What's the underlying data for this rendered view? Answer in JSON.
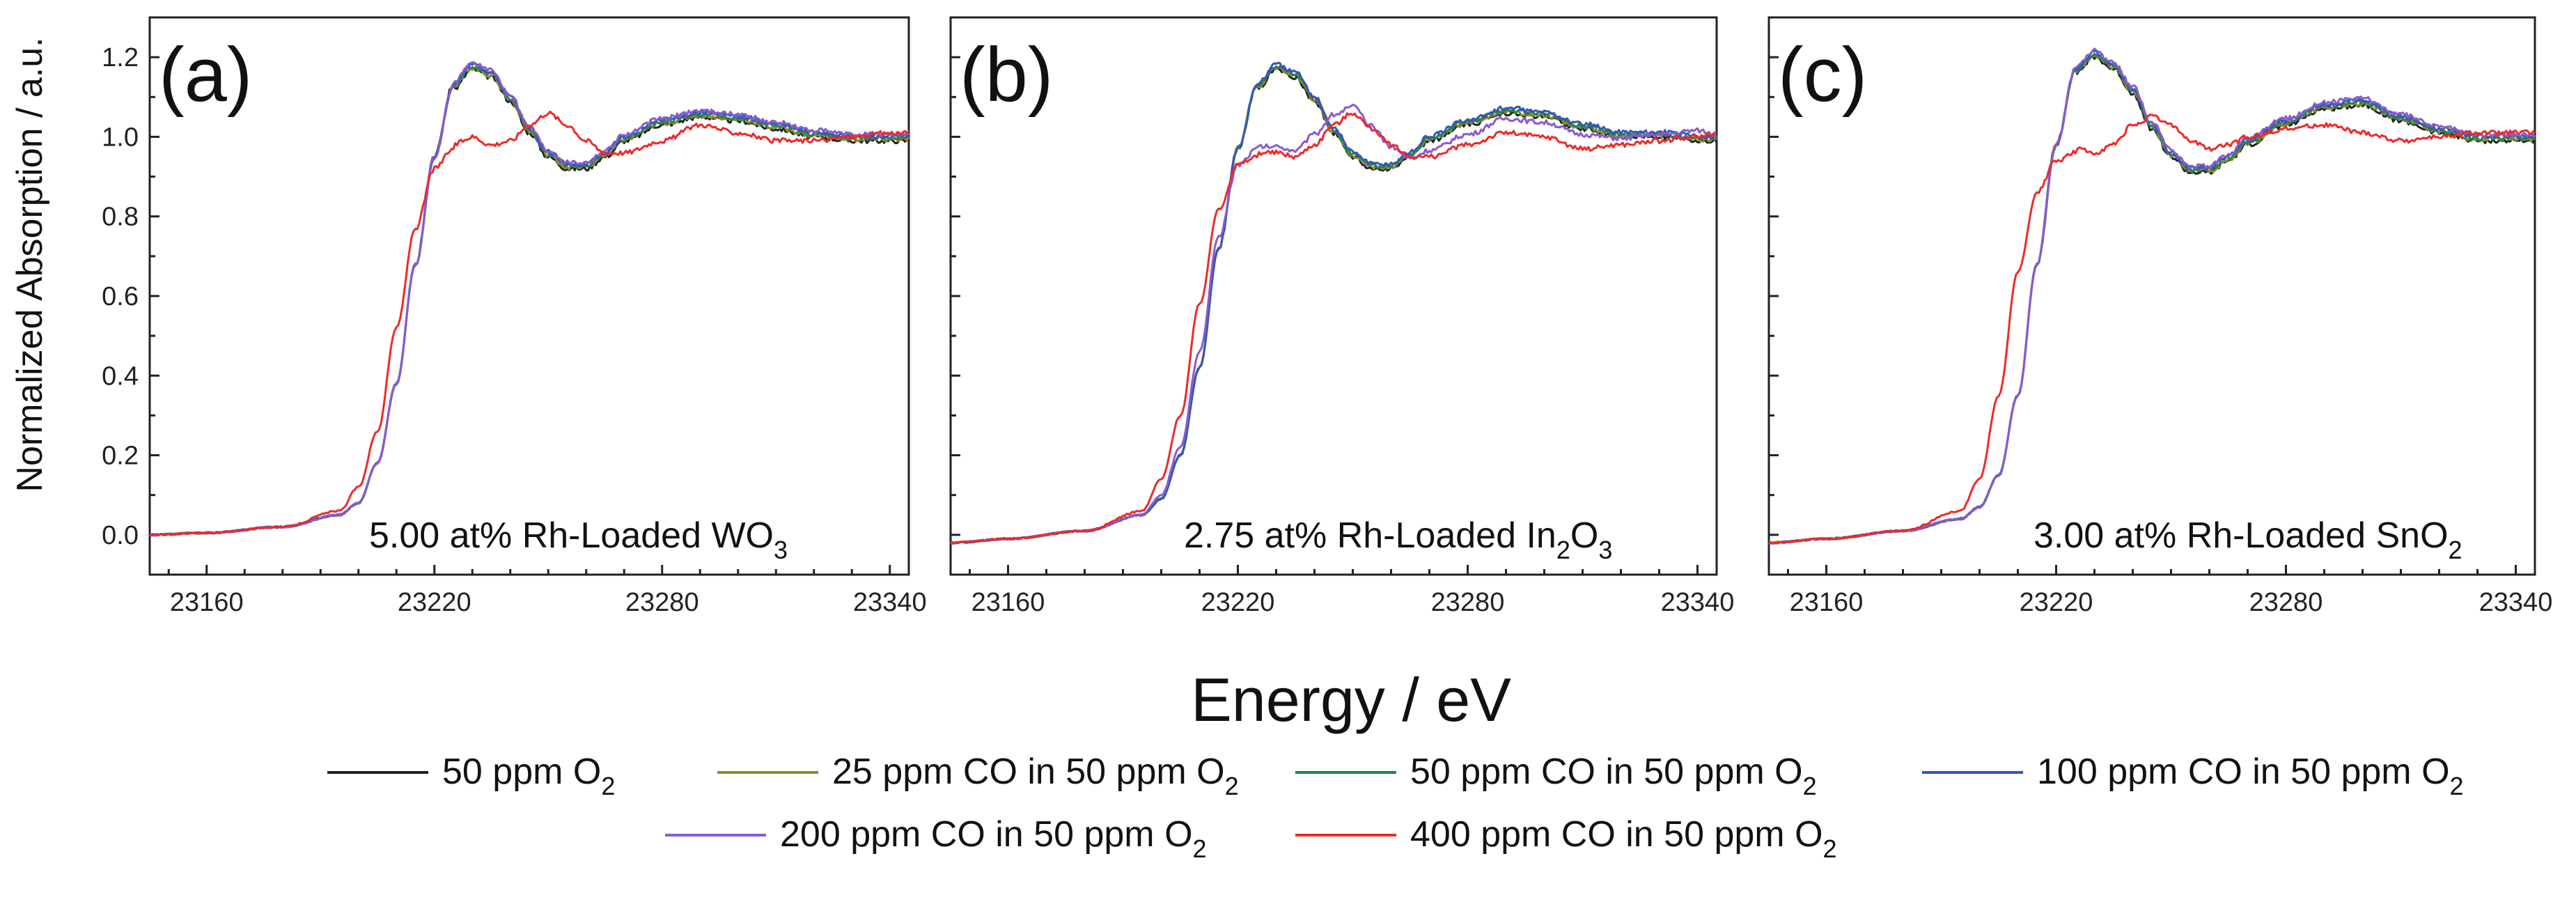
{
  "chart_data": {
    "type": "line",
    "ylabel": "Normalized Absorption / a.u.",
    "xlabel": "Energy / eV",
    "x_range": [
      23145,
      23345
    ],
    "legend": [
      {
        "id": "s1",
        "label": "50 ppm O",
        "sub": "2",
        "color": "#222222"
      },
      {
        "id": "s2",
        "label": "25 ppm CO in 50 ppm O",
        "sub": "2",
        "color": "#8a8a2a"
      },
      {
        "id": "s3",
        "label": "50 ppm CO in 50 ppm O",
        "sub": "2",
        "color": "#1e8a4a"
      },
      {
        "id": "s4",
        "label": "100 ppm CO in 50 ppm O",
        "sub": "2",
        "color": "#3a55b8"
      },
      {
        "id": "s5",
        "label": "200 ppm CO in 50 ppm O",
        "sub": "2",
        "color": "#8a5ad0"
      },
      {
        "id": "s6",
        "label": "400 ppm CO in 50 ppm O",
        "sub": "2",
        "color": "#ee2a2a"
      }
    ],
    "panels": [
      {
        "id": "a",
        "label": "(a)",
        "inset_text": "5.00 at% Rh-Loaded WO",
        "inset_sub": "3",
        "ylim": [
          -0.1,
          1.3
        ],
        "yticks": [
          "0.0",
          "0.2",
          "0.4",
          "0.6",
          "0.8",
          "1.0",
          "1.2"
        ],
        "xticks": [
          "23160",
          "23220",
          "23280",
          "23340"
        ],
        "series": {
          "reduced": {
            "x": [
              23145,
              23160,
              23180,
              23195,
              23200,
              23205,
              23210,
              23215,
              23220,
              23225,
              23230,
              23235,
              23240,
              23245,
              23250,
              23255,
              23260,
              23265,
              23270,
              23280,
              23290,
              23300,
              23310,
              23320,
              23330,
              23340,
              23345
            ],
            "y": [
              0.0,
              0.005,
              0.02,
              0.06,
              0.12,
              0.26,
              0.52,
              0.77,
              0.92,
              0.97,
              0.99,
              0.97,
              0.98,
              1.02,
              1.05,
              1.02,
              0.98,
              0.95,
              0.95,
              0.98,
              1.02,
              1.0,
              0.98,
              0.98,
              0.99,
              1.0,
              1.0
            ]
          },
          "oxidized": {
            "x": [
              23145,
              23160,
              23180,
              23195,
              23200,
              23205,
              23210,
              23215,
              23220,
              23225,
              23230,
              23235,
              23240,
              23245,
              23250,
              23255,
              23260,
              23265,
              23270,
              23280,
              23290,
              23300,
              23310,
              23320,
              23330,
              23340,
              23345
            ],
            "y": [
              0.0,
              0.005,
              0.02,
              0.05,
              0.08,
              0.18,
              0.38,
              0.68,
              0.95,
              1.13,
              1.18,
              1.16,
              1.1,
              1.02,
              0.96,
              0.93,
              0.93,
              0.96,
              1.0,
              1.04,
              1.06,
              1.05,
              1.03,
              1.01,
              1.0,
              1.0,
              1.0
            ]
          }
        }
      },
      {
        "id": "b",
        "label": "(b)",
        "inset_text": "2.75 at% Rh-Loaded In",
        "inset_sub": "2",
        "inset_text2": "O",
        "inset_sub2": "3",
        "ylim": [
          -0.1,
          1.3
        ],
        "yticks": [],
        "xticks": [
          "23160",
          "23220",
          "23280",
          "23340"
        ],
        "series": {
          "reduced": {
            "x": [
              23145,
              23160,
              23180,
              23195,
              23200,
              23205,
              23210,
              23215,
              23220,
              23225,
              23230,
              23235,
              23240,
              23245,
              23250,
              23255,
              23260,
              23265,
              23270,
              23280,
              23290,
              23300,
              23310,
              23320,
              23330,
              23340,
              23345
            ],
            "y": [
              -0.02,
              -0.01,
              0.01,
              0.06,
              0.14,
              0.3,
              0.58,
              0.82,
              0.93,
              0.95,
              0.95,
              0.94,
              0.97,
              1.02,
              1.05,
              1.01,
              0.97,
              0.94,
              0.94,
              0.97,
              1.0,
              0.99,
              0.96,
              0.97,
              0.98,
              0.99,
              1.0
            ]
          },
          "oxidized": {
            "x": [
              23145,
              23160,
              23180,
              23195,
              23200,
              23205,
              23210,
              23215,
              23220,
              23225,
              23230,
              23235,
              23240,
              23245,
              23250,
              23255,
              23260,
              23265,
              23270,
              23280,
              23290,
              23300,
              23310,
              23320,
              23330,
              23340,
              23345
            ],
            "y": [
              -0.02,
              -0.01,
              0.01,
              0.05,
              0.09,
              0.2,
              0.42,
              0.72,
              0.97,
              1.13,
              1.18,
              1.16,
              1.1,
              1.02,
              0.96,
              0.93,
              0.93,
              0.96,
              1.0,
              1.04,
              1.07,
              1.06,
              1.03,
              1.01,
              1.01,
              1.0,
              1.0
            ]
          },
          "mid": {
            "x": [
              23145,
              23160,
              23180,
              23195,
              23200,
              23205,
              23210,
              23215,
              23220,
              23225,
              23230,
              23235,
              23240,
              23245,
              23250,
              23255,
              23260,
              23265,
              23270,
              23280,
              23290,
              23300,
              23310,
              23320,
              23330,
              23340,
              23345
            ],
            "y": [
              -0.02,
              -0.01,
              0.01,
              0.05,
              0.1,
              0.22,
              0.46,
              0.75,
              0.93,
              0.97,
              0.97,
              0.96,
              1.0,
              1.05,
              1.07,
              1.02,
              0.97,
              0.94,
              0.96,
              1.0,
              1.04,
              1.03,
              1.0,
              0.99,
              1.0,
              1.01,
              1.0
            ]
          }
        }
      },
      {
        "id": "c",
        "label": "(c)",
        "inset_text": "3.00 at% Rh-Loaded SnO",
        "inset_sub": "2",
        "ylim": [
          -0.1,
          1.3
        ],
        "yticks": [],
        "xticks": [
          "23160",
          "23220",
          "23280",
          "23340"
        ],
        "series": {
          "reduced": {
            "x": [
              23145,
              23160,
              23180,
              23195,
              23200,
              23205,
              23210,
              23215,
              23220,
              23225,
              23230,
              23235,
              23240,
              23245,
              23250,
              23255,
              23260,
              23265,
              23270,
              23280,
              23290,
              23300,
              23310,
              23320,
              23330,
              23340,
              23345
            ],
            "y": [
              -0.02,
              -0.01,
              0.01,
              0.06,
              0.14,
              0.35,
              0.66,
              0.86,
              0.94,
              0.96,
              0.95,
              0.97,
              1.02,
              1.04,
              1.02,
              0.98,
              0.96,
              0.97,
              0.99,
              1.01,
              1.02,
              1.0,
              0.98,
              0.99,
              1.0,
              1.0,
              1.0
            ]
          },
          "oxidized": {
            "x": [
              23145,
              23160,
              23180,
              23195,
              23200,
              23205,
              23210,
              23215,
              23220,
              23225,
              23230,
              23235,
              23240,
              23245,
              23250,
              23255,
              23260,
              23265,
              23270,
              23280,
              23290,
              23300,
              23310,
              23320,
              23330,
              23340,
              23345
            ],
            "y": [
              -0.02,
              -0.01,
              0.01,
              0.04,
              0.07,
              0.15,
              0.35,
              0.68,
              0.98,
              1.17,
              1.21,
              1.18,
              1.12,
              1.03,
              0.96,
              0.92,
              0.92,
              0.95,
              0.99,
              1.04,
              1.08,
              1.09,
              1.05,
              1.02,
              1.0,
              1.0,
              1.0
            ]
          }
        }
      }
    ]
  }
}
